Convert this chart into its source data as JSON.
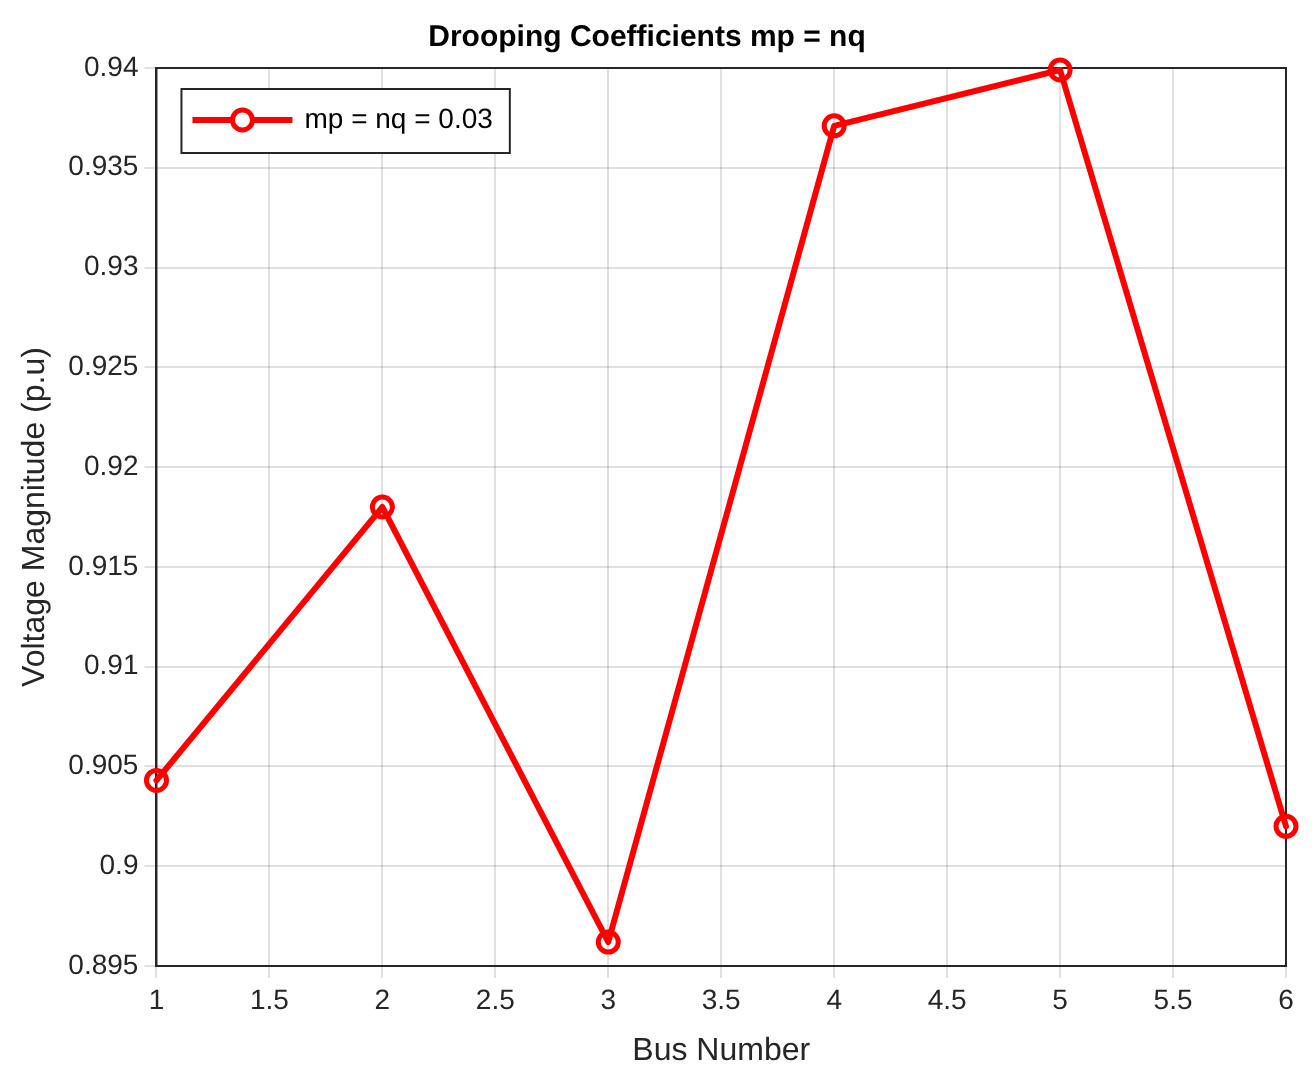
{
  "chart_data": {
    "type": "line",
    "title": "Drooping Coefficients mp = nq",
    "xlabel": "Bus Number",
    "ylabel": "Voltage Magnitude (p.u)",
    "x": [
      1,
      2,
      3,
      4,
      5,
      6
    ],
    "series": [
      {
        "name": "mp = nq = 0.03",
        "color": "#ff0000",
        "values": [
          0.9043,
          0.918,
          0.8962,
          0.9371,
          0.9399,
          0.902
        ]
      }
    ],
    "xlim": [
      1,
      6
    ],
    "xticks": [
      1,
      1.5,
      2,
      2.5,
      3,
      3.5,
      4,
      4.5,
      5,
      5.5,
      6
    ],
    "ylim": [
      0.895,
      0.94
    ],
    "yticks": [
      0.895,
      0.9,
      0.905,
      0.91,
      0.915,
      0.92,
      0.925,
      0.93,
      0.935,
      0.94
    ],
    "grid": true,
    "legend": "top left",
    "marker": "circle",
    "line_style": "solid"
  }
}
